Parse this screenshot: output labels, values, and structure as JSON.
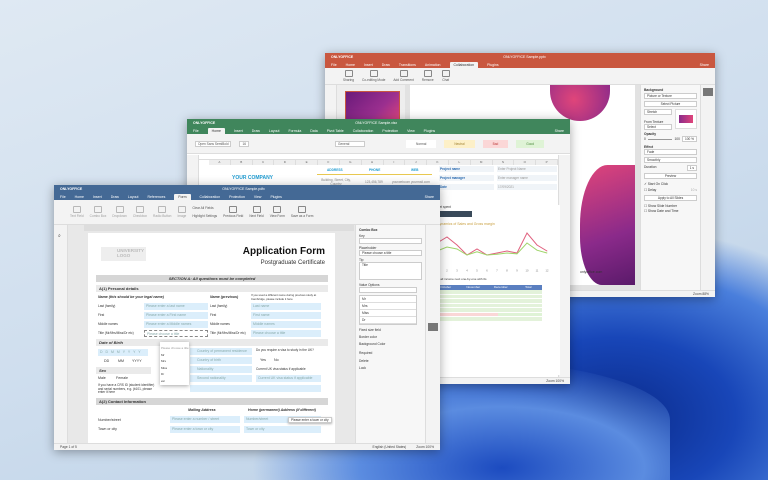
{
  "presentation": {
    "app": "ONLYOFFICE",
    "title": "ONLYOFFICE Sample.pptx",
    "accent": "#c9573f",
    "tabs": [
      "File",
      "Home",
      "Insert",
      "Draw",
      "Transitions",
      "Animation",
      "Collaboration",
      "Plugins"
    ],
    "active_tab": "Collaboration",
    "tools": [
      "Sharing",
      "Co-editing Mode",
      "Add Comment",
      "Remove",
      "Chat"
    ],
    "share": "Share",
    "panel": {
      "background_label": "Background",
      "fill_value": "Picture or Texture",
      "select_picture": "Select Picture",
      "stretch": "Stretch",
      "from_texture": "From Texture",
      "select": "Select",
      "opacity": "Opacity",
      "opacity_min": "0",
      "opacity_max": "100",
      "opacity_value": "100 %",
      "opacity_percent": 100,
      "effect": "Effect",
      "effect_value": "Fade",
      "effect_option": "Smoothly",
      "duration": "Duration",
      "duration_value": "1 s",
      "preview": "Preview",
      "start_on_click": "Start On Click",
      "delay": "Delay",
      "delay_value": "10 s",
      "apply_all": "Apply to All Slides",
      "show_slide_number": "Show Slide Number",
      "show_date": "Show Date and Time"
    },
    "slide_text": "onlyoffice.com",
    "status": {
      "zoom": "Zoom 88%"
    }
  },
  "spreadsheet": {
    "app": "ONLYOFFICE",
    "title": "ONLYOFFICE Sample.xlsx",
    "accent": "#40865c",
    "tabs": [
      "File",
      "Home",
      "Insert",
      "Draw",
      "Layout",
      "Formula",
      "Data",
      "Pivot Table",
      "Collaboration",
      "Protection",
      "View",
      "Plugins"
    ],
    "active_tab": "Home",
    "font": "Open Sans SemiBold",
    "font_size": "16",
    "number_format": "General",
    "styles": [
      "Normal",
      "Neutral",
      "Bad",
      "Good"
    ],
    "share": "Share",
    "columns": [
      "A",
      "B",
      "C",
      "D",
      "E",
      "F",
      "G",
      "H",
      "I",
      "J",
      "K",
      "L",
      "M",
      "N",
      "O",
      "P"
    ],
    "company": "YOUR COMPANY",
    "address_h": "ADDRESS",
    "phone_h": "PHONE",
    "web_h": "WEB",
    "address": "Building, Street, City, Country",
    "phone": "123,456,789",
    "web": "yourwebcom yourmail.com",
    "project": [
      {
        "k": "Project name",
        "v": "Enter Project Name"
      },
      {
        "k": "Project manager",
        "v": "Enter manager name"
      },
      {
        "k": "Date",
        "v": "17/09/2021"
      }
    ],
    "spent": "Budget spent",
    "pct": "76%",
    "chart_title": "Dynamics of Sales and Gross margin",
    "note": "Insert all income next one-by-one with 0s",
    "table_head": [
      "October",
      "November",
      "December",
      "Total"
    ],
    "status": {
      "zoom": "Zoom 100%"
    }
  },
  "chart_data": {
    "type": "line",
    "title": "Dynamics of Sales and Gross margin",
    "x": [
      1,
      2,
      3,
      4,
      5,
      6,
      7,
      8,
      9,
      10,
      11,
      12
    ],
    "series": [
      {
        "values": [
          60,
          75,
          55,
          30,
          45,
          30,
          35,
          40,
          35,
          85,
          55,
          40
        ],
        "color": "#e0607e"
      },
      {
        "values": [
          40,
          50,
          45,
          30,
          38,
          30,
          32,
          35,
          33,
          60,
          42,
          35
        ],
        "color": "#9fd46a"
      }
    ],
    "ylim": [
      0,
      100
    ]
  },
  "document": {
    "app": "ONLYOFFICE",
    "title": "ONLYOFFICE Sample.pdfx",
    "accent": "#446995",
    "tabs": [
      "File",
      "Home",
      "Insert",
      "Draw",
      "Layout",
      "References",
      "Form",
      "Collaboration",
      "Protection",
      "View",
      "Plugins"
    ],
    "active_tab": "Form",
    "tools": [
      "Text Field",
      "Combo Box",
      "Dropdown",
      "Checkbox",
      "Radio Button",
      "Image"
    ],
    "clear": "Clear All Fields",
    "highlight": "Highlight Settings",
    "prev": "Previous Field",
    "next": "Next Field",
    "view": "View Form",
    "save": "Save as a Form",
    "share": "Share",
    "page": {
      "logo": "UNIVERSITY LOGO",
      "title": "Application Form",
      "subtitle": "Postgraduate Certificate",
      "section": "SECTION A: All questions must be completed",
      "a1": "A(1) Personal details",
      "name_legal": "Name (this should be your legal name)",
      "name_prev": "Name (previous)",
      "prev_note": "If you used a different name during previous study at Cambridge, please include it here",
      "rows": [
        {
          "l": "Last (family)",
          "p": "Please enter a last name",
          "l2": "Last (family)",
          "p2": "Last name"
        },
        {
          "l": "First",
          "p": "Please enter a First name",
          "l2": "First",
          "p2": "First name"
        },
        {
          "l": "Middle names",
          "p": "Please enter a Middle names",
          "l2": "Middle names",
          "p2": "Middle names"
        },
        {
          "l": "Title (Mr/Mrs/Miss/Dr etc)",
          "p": "Please choose a title",
          "l2": "Title (Mr/Mrs/Miss/Dr etc)",
          "p2": "Please choose a title"
        }
      ],
      "dob": "Date of Birth",
      "dob_fmt": "D D M M Y Y Y Y",
      "dd": "DD",
      "mm": "MM",
      "yyyy": "YYYY",
      "sex": "Sex",
      "male": "Male",
      "female": "Female",
      "residence": "Country of permanent residence",
      "birth": "Country of birth",
      "nationality": "Nationality",
      "second_nat": "Second nationality",
      "visa_q": "Do you require a visa to study in the UK?",
      "yes": "Yes",
      "no": "No",
      "visa_status": "Current UK visa status if applicable",
      "visa_ph": "Current UK visa status if applicable",
      "crs": "If you have a CRS ID (student identifier) and serial numbers, e.g. jb101, please enter it here",
      "a2": "A(2) Contact Information",
      "mailing": "Mailing Address",
      "home": "Home (permanent) Address (if different)",
      "number_street": "Number/street",
      "num_ph": "Please enter a number / street",
      "num_ph2": "Number/street",
      "town": "Town or city",
      "town_ph": "Please enter a town or city",
      "town_ph2": "Town or city",
      "tooltip": "Please enter a town or city",
      "dropdown": [
        "Please choose a title",
        "Mr",
        "Mrs",
        "Miss",
        "Dr",
        "etc"
      ]
    },
    "panel": {
      "title": "Combo Box",
      "key": "Key",
      "placeholder_l": "Placeholder",
      "placeholder": "Please choose a title",
      "tip_l": "Tip",
      "tip": "Title",
      "values_l": "Value Options",
      "values": [
        "Mr",
        "Mrs",
        "Miss",
        "Dr"
      ],
      "fixed": "Fixed size field",
      "border": "Border color",
      "bg": "Background Color",
      "required": "Required",
      "delete": "Delete",
      "lock": "Lock"
    },
    "status": {
      "page": "Page 1 of 5",
      "lang": "English (United States)",
      "zoom": "Zoom 100%"
    }
  }
}
